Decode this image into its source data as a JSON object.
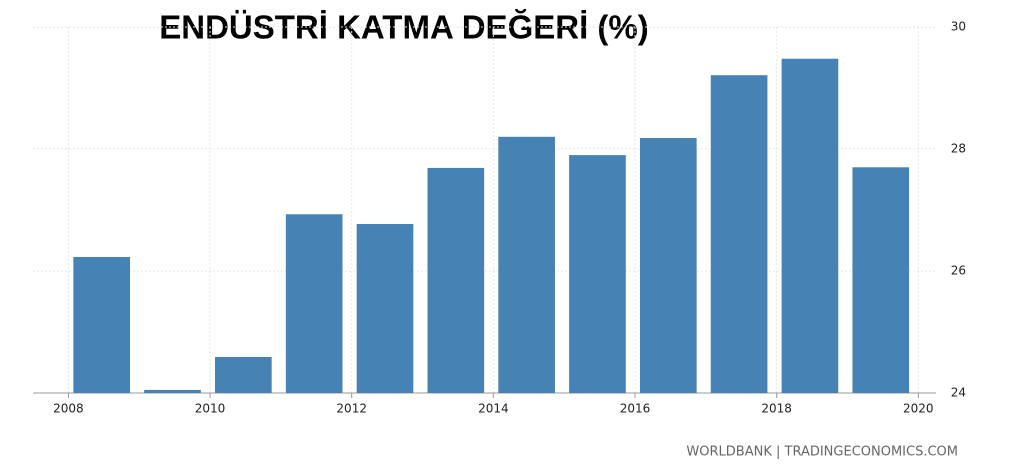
{
  "chart_data": {
    "type": "bar",
    "title": "ENDÜSTRİ KATMA DEĞERİ (%)",
    "x": [
      2008,
      2009,
      2010,
      2011,
      2012,
      2013,
      2014,
      2015,
      2016,
      2017,
      2018,
      2019
    ],
    "values": [
      26.23,
      24.05,
      24.59,
      26.93,
      26.77,
      27.69,
      28.2,
      27.9,
      28.18,
      29.21,
      29.48,
      27.7
    ],
    "color": "#4682b4",
    "xlim": [
      2007.5,
      2020.25
    ],
    "xticks": [
      2008,
      2010,
      2012,
      2014,
      2016,
      2018,
      2020
    ],
    "ylim": [
      24,
      30
    ],
    "yticks": [
      24,
      26,
      28,
      30
    ],
    "grid": true,
    "source": "WORLDBANK | TRADINGECONOMICS.COM"
  }
}
